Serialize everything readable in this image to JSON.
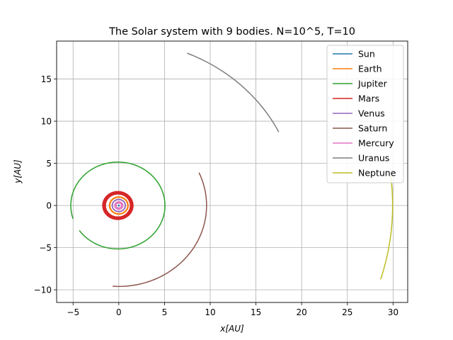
{
  "chart_data": {
    "type": "line",
    "title": "The Solar system with 9 bodies. N=10^5, T=10",
    "xlabel": "x[AU]",
    "ylabel": "y[AU]",
    "xlim": [
      -6.8,
      31.6
    ],
    "ylim": [
      -11.5,
      19.5
    ],
    "xticks": [
      -5,
      0,
      5,
      10,
      15,
      20,
      25,
      30
    ],
    "yticks": [
      -10,
      -5,
      0,
      5,
      10,
      15
    ],
    "grid": true,
    "legend_position": "top-right",
    "series": [
      {
        "name": "Sun",
        "color": "#1f77b4",
        "shape": "dot",
        "center": [
          0,
          0
        ],
        "radius": 0.02
      },
      {
        "name": "Earth",
        "color": "#ff7f0e",
        "shape": "orbit",
        "center": [
          0,
          0
        ],
        "radius": 1.0,
        "rings": [
          0.97,
          1.0,
          1.03
        ]
      },
      {
        "name": "Jupiter",
        "color": "#2ca02c",
        "shape": "arc",
        "center": [
          -0.1,
          0
        ],
        "radius": 5.15,
        "start_deg": -145,
        "end_deg": 198
      },
      {
        "name": "Mars",
        "color": "#d62728",
        "shape": "orbit",
        "center": [
          -0.1,
          0
        ],
        "radius": 1.52,
        "rings": [
          1.36,
          1.45,
          1.52,
          1.6,
          1.66
        ]
      },
      {
        "name": "Venus",
        "color": "#9467bd",
        "shape": "orbit",
        "center": [
          0,
          0
        ],
        "radius": 0.72,
        "rings": [
          0.7,
          0.73
        ]
      },
      {
        "name": "Saturn",
        "color": "#8c564b",
        "shape": "arc",
        "center": [
          0,
          0
        ],
        "radius": 9.6,
        "start_deg": -94,
        "end_deg": 24
      },
      {
        "name": "Mercury",
        "color": "#e377c2",
        "shape": "orbit",
        "center": [
          0,
          0
        ],
        "radius": 0.39,
        "rings": [
          0.3,
          0.39,
          0.45
        ]
      },
      {
        "name": "Uranus",
        "color": "#7f7f7f",
        "shape": "arc",
        "center": [
          0,
          0
        ],
        "radius": 19.55,
        "start_deg": 26.5,
        "end_deg": 67.5
      },
      {
        "name": "Neptune",
        "color": "#bcbd22",
        "shape": "arc",
        "center": [
          0,
          0
        ],
        "radius": 29.95,
        "start_deg": -17,
        "end_deg": 7
      }
    ]
  }
}
